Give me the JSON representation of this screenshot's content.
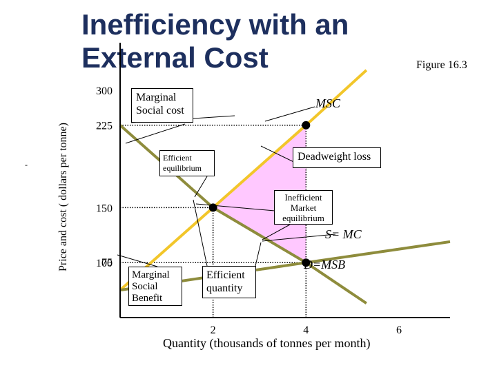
{
  "title": "Inefficiency with an External Cost",
  "figure_label": "Figure 16.3",
  "stray_mark": "-",
  "annotations": {
    "msc_box": "Marginal\nSocial cost",
    "msc_label": "MSC",
    "efficient_eq": "Efficient\nequilibrium",
    "deadweight": "Deadweight loss",
    "inefficient_eq": "Inefficient\nMarket\nequilibrium",
    "supply_label": "S= MC",
    "demand_label": "D=MSB",
    "msb_box": "Marginal\nSocial\nBenefit",
    "eff_quantity": "Efficient\nquantity"
  },
  "colors": {
    "title": "#1d2f5e",
    "msc_line": "#f2c62a",
    "supply_line": "#8e8c3c",
    "demand_line": "#8e8c3c",
    "deadweight_fill": "#ffc8ff",
    "point": "#000000"
  },
  "chart_data": {
    "type": "line",
    "xlabel": "Quantity (thousands of tonnes per month)",
    "ylabel": "Price and cost ( dollars per tonne)",
    "x_ticks": [
      "2",
      "4",
      "6"
    ],
    "x_tick_values": [
      2,
      4,
      6
    ],
    "y_ticks": [
      "300",
      "225",
      "150",
      "100",
      "75"
    ],
    "y_tick_values": [
      300,
      225,
      150,
      100,
      75
    ],
    "xlim": [
      0,
      7.1
    ],
    "ylim": [
      50,
      300
    ],
    "series": [
      {
        "name": "MSC",
        "x": [
          0,
          2,
          4,
          5.3
        ],
        "y": [
          75,
          150,
          225,
          275
        ]
      },
      {
        "name": "S= MC",
        "x": [
          0,
          4,
          7.1
        ],
        "y": [
          75,
          100,
          119
        ]
      },
      {
        "name": "D=MSB",
        "x": [
          0,
          2,
          4,
          5.3
        ],
        "y": [
          225,
          150,
          100,
          63
        ]
      }
    ],
    "points": [
      {
        "name": "Efficient equilibrium",
        "x": 2,
        "y": 150
      },
      {
        "name": "Inefficient Market equilibrium",
        "x": 4,
        "y": 100
      },
      {
        "name": "MSC at inefficient quantity",
        "x": 4,
        "y": 225
      }
    ],
    "deadweight_loss": [
      [
        2,
        150
      ],
      [
        4,
        225
      ],
      [
        4,
        100
      ]
    ],
    "reference_lines": [
      {
        "y": 225,
        "x_to": 4
      },
      {
        "y": 150,
        "x_to": 2
      },
      {
        "y": 100,
        "x_to": 4
      },
      {
        "x": 2,
        "y_to": 150
      },
      {
        "x": 4,
        "y_to": 225
      }
    ]
  }
}
